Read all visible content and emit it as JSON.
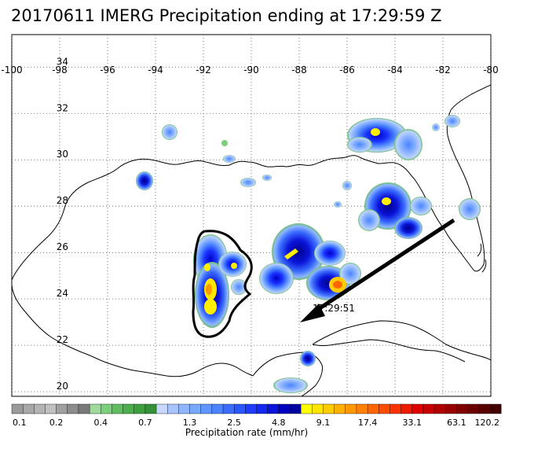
{
  "title": "20170611 IMERG Precipitation ending at 17:29:59 Z",
  "map": {
    "lon_ticks": [
      "-100",
      "-98",
      "-96",
      "-94",
      "-92",
      "-90",
      "-88",
      "-86",
      "-84",
      "-82",
      "-80"
    ],
    "lat_ticks": [
      "20",
      "22",
      "24",
      "26",
      "28",
      "30",
      "32",
      "34"
    ],
    "lon_range": [
      -100,
      -80
    ],
    "lat_range": [
      19.8,
      35.4
    ],
    "track_label": "17:29:51",
    "gridlines": "dotted"
  },
  "colorbar": {
    "title": "Precipitation rate (mm/hr)",
    "labels": [
      "0.1",
      "0.2",
      "0.4",
      "0.7",
      "1.3",
      "2.5",
      "4.8",
      "9.1",
      "17.4",
      "33.1",
      "63.1",
      "120.2"
    ],
    "colors": [
      "#9a9a9a",
      "#a8a8a8",
      "#b4b4b4",
      "#c0c0c0",
      "#a0a0a0",
      "#8c8c8c",
      "#7a7a7a",
      "#9ed99e",
      "#7ccf7c",
      "#5fbf5f",
      "#4cae4c",
      "#3f9f3f",
      "#34913a",
      "#c8d8ff",
      "#a8c4ff",
      "#8fb6ff",
      "#79a8ff",
      "#5f96ff",
      "#4a84ff",
      "#3a6cff",
      "#2a56ff",
      "#1e3cff",
      "#1428f0",
      "#0a14d8",
      "#0000c0",
      "#00009e",
      "#ffff00",
      "#ffe600",
      "#ffcc00",
      "#ffb000",
      "#ff9900",
      "#ff8000",
      "#ff6600",
      "#ff4d00",
      "#ff3300",
      "#f01a00",
      "#e00000",
      "#c80000",
      "#b00000",
      "#980000",
      "#800000",
      "#6c0000",
      "#580000",
      "#440000"
    ]
  }
}
